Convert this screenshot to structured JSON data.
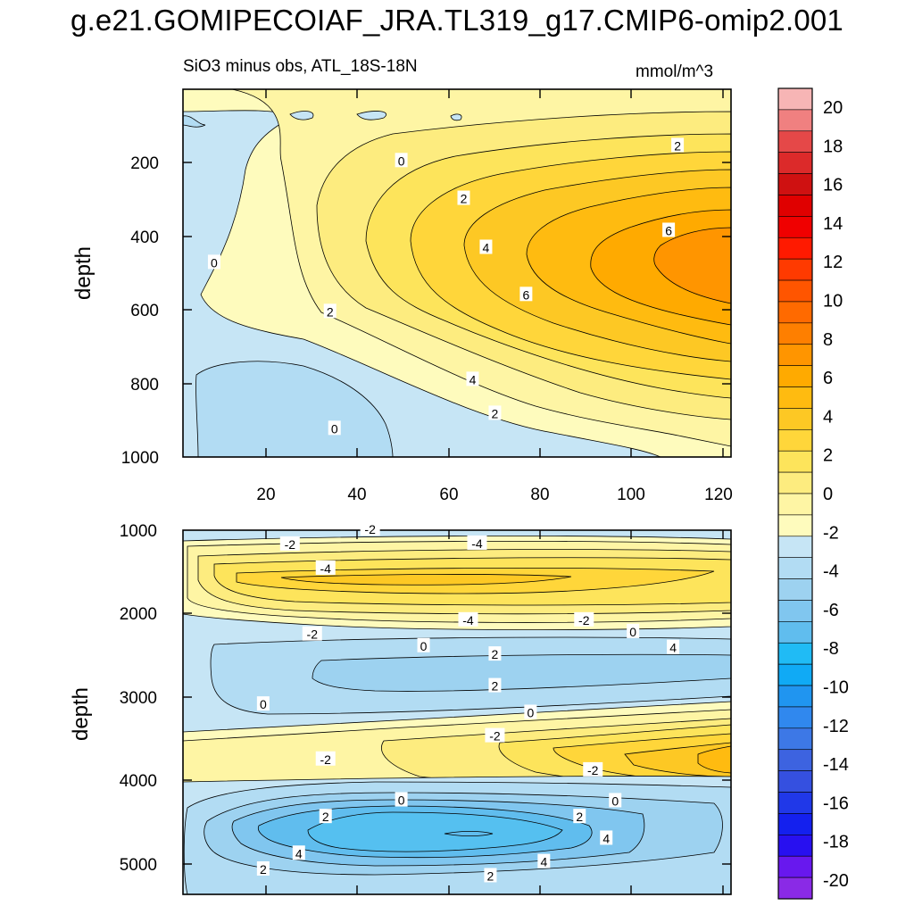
{
  "title": "g.e21.GOMIPECOIAF_JRA.TL319_g17.CMIP6-omip2.001",
  "chart_data": [
    {
      "type": "contour",
      "panel": "upper",
      "subtitle": "SiO3 minus obs, ATL_18S-18N",
      "units": "mmol/m^3",
      "ylabel": "depth",
      "xlabel": "",
      "xlim": [
        0,
        123
      ],
      "ylim": [
        1000,
        25
      ],
      "xticks": [
        20,
        40,
        60,
        80,
        100,
        120
      ],
      "yticks": [
        200,
        400,
        600,
        800,
        1000
      ],
      "contour_labels": [
        {
          "text": "0",
          "x": 34,
          "y": 100
        },
        {
          "text": "2",
          "x": 70,
          "y": 140
        },
        {
          "text": "4",
          "x": 65,
          "y": 230
        },
        {
          "text": "2",
          "x": 33,
          "y": 410
        },
        {
          "text": "6",
          "x": 77,
          "y": 455
        },
        {
          "text": "0",
          "x": 7,
          "y": 540
        },
        {
          "text": "4",
          "x": 68,
          "y": 580
        },
        {
          "text": "6",
          "x": 109,
          "y": 625
        },
        {
          "text": "2",
          "x": 63,
          "y": 710
        },
        {
          "text": "0",
          "x": 49,
          "y": 810
        },
        {
          "text": "2",
          "x": 111,
          "y": 850
        }
      ]
    },
    {
      "type": "contour",
      "panel": "lower",
      "subtitle": "",
      "ylabel": "depth",
      "xlabel": "",
      "xlim": [
        0,
        123
      ],
      "ylim": [
        5370,
        1000
      ],
      "yticks": [
        1000,
        2000,
        3000,
        4000,
        5000
      ],
      "contour_labels": [
        {
          "text": "2",
          "x": 18,
          "y": 1300
        },
        {
          "text": "2",
          "x": 69,
          "y": 1220
        },
        {
          "text": "4",
          "x": 26,
          "y": 1490
        },
        {
          "text": "4",
          "x": 81,
          "y": 1390
        },
        {
          "text": "4",
          "x": 95,
          "y": 1670
        },
        {
          "text": "2",
          "x": 32,
          "y": 1930
        },
        {
          "text": "2",
          "x": 89,
          "y": 1930
        },
        {
          "text": "0",
          "x": 49,
          "y": 2130
        },
        {
          "text": "0",
          "x": 97,
          "y": 2120
        },
        {
          "text": "-2",
          "x": 92,
          "y": 2490
        },
        {
          "text": "-2",
          "x": 32,
          "y": 2620
        },
        {
          "text": "-2",
          "x": 70,
          "y": 2900
        },
        {
          "text": "0",
          "x": 78,
          "y": 3180
        },
        {
          "text": "0",
          "x": 18,
          "y": 3280
        },
        {
          "text": "2",
          "x": 70,
          "y": 3500
        },
        {
          "text": "2",
          "x": 70,
          "y": 3880
        },
        {
          "text": "0",
          "x": 54,
          "y": 3980
        },
        {
          "text": "4",
          "x": 110,
          "y": 3960
        },
        {
          "text": "0",
          "x": 101,
          "y": 4150
        },
        {
          "text": "-2",
          "x": 29,
          "y": 4120
        },
        {
          "text": "-4",
          "x": 64,
          "y": 4290
        },
        {
          "text": "-2",
          "x": 90,
          "y": 4290
        },
        {
          "text": "-4",
          "x": 32,
          "y": 4910
        },
        {
          "text": "-2",
          "x": 24,
          "y": 5200
        },
        {
          "text": "-4",
          "x": 66,
          "y": 5210
        },
        {
          "text": "-2",
          "x": 42,
          "y": 5380
        }
      ]
    }
  ],
  "colorbar": {
    "labels": [
      "20",
      "18",
      "16",
      "14",
      "12",
      "10",
      "8",
      "6",
      "4",
      "2",
      "0",
      "-2",
      "-4",
      "-6",
      "-8",
      "-10",
      "-12",
      "-14",
      "-16",
      "-18",
      "-20"
    ],
    "colors": [
      "#f7b5b5",
      "#f08080",
      "#e54848",
      "#dc2a2a",
      "#cf1111",
      "#e00000",
      "#f00000",
      "#ff1a00",
      "#ff3a00",
      "#ff5500",
      "#ff6a00",
      "#fe7f00",
      "#ff9500",
      "#ffaa00",
      "#ffbb10",
      "#fdc824",
      "#ffd63a",
      "#fde45b",
      "#fdec7f",
      "#fef5a4",
      "#fefbbd",
      "#c6e5f5",
      "#b2dcf3",
      "#9dd2f0",
      "#80c6ef",
      "#60bdee",
      "#20bbf5",
      "#10aaf5",
      "#2095f0",
      "#3088ee",
      "#3d78e6",
      "#3d63e0",
      "#3550e0",
      "#2038e8",
      "#1420ee",
      "#2810f0",
      "#6818ee",
      "#8a2ae6"
    ]
  }
}
